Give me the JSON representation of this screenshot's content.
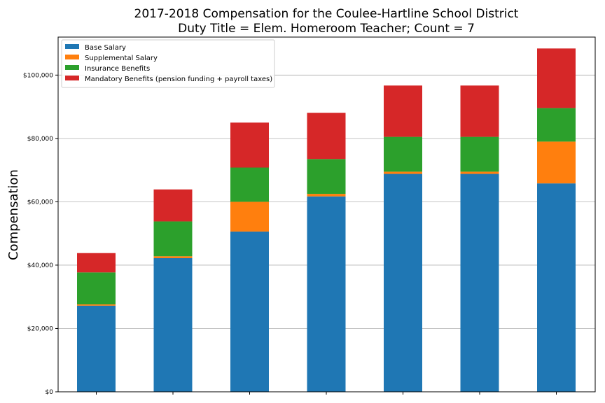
{
  "chart_data": {
    "type": "bar",
    "stacked": true,
    "title": "2017-2018 Compensation for the Coulee-Hartline School District",
    "subtitle": "Duty Title = Elem. Homeroom Teacher; Count = 7",
    "xlabel": "",
    "ylabel": "Compensation",
    "ylim": [
      0,
      112000
    ],
    "yticks": [
      0,
      20000,
      40000,
      60000,
      80000,
      100000
    ],
    "ytick_labels": [
      "$0",
      "$20,000",
      "$40,000",
      "$60,000",
      "$80,000",
      "$100,000"
    ],
    "grid": "horizontal",
    "legend_position": "top-left",
    "categories": [
      "",
      "",
      "",
      "",
      "",
      "",
      ""
    ],
    "series": [
      {
        "name": "Base Salary",
        "color": "#1f77b4",
        "values": [
          27200,
          42200,
          50600,
          61700,
          68800,
          68800,
          65800
        ]
      },
      {
        "name": "Supplemental Salary",
        "color": "#ff7f0e",
        "values": [
          400,
          600,
          9400,
          800,
          700,
          700,
          13200
        ]
      },
      {
        "name": "Insurance Benefits",
        "color": "#2ca02c",
        "values": [
          10100,
          11000,
          10800,
          11000,
          11000,
          11000,
          10600
        ]
      },
      {
        "name": "Mandatory Benefits (pension funding + payroll taxes)",
        "color": "#d62728",
        "values": [
          6100,
          10100,
          14200,
          14600,
          16200,
          16200,
          18800
        ]
      }
    ]
  }
}
